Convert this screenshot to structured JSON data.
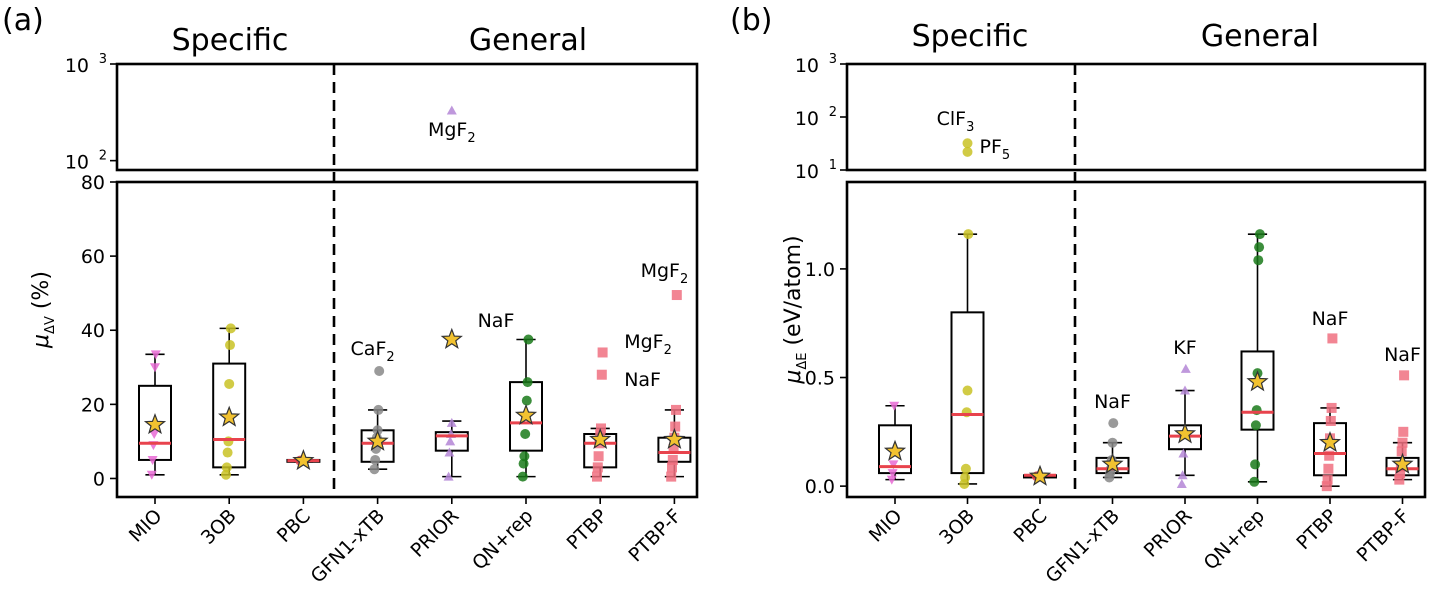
{
  "groups": {
    "specific": "Specific",
    "general": "General"
  },
  "color_map": {
    "MIO": "#e86ad4",
    "3OB": "#c9c224",
    "PBC": "#e8434d",
    "GFN1-xTB": "#888888",
    "PRIOR": "#b486d6",
    "QN+rep": "#1a7a1a",
    "PTBP": "#f07080",
    "PTBP-F": "#f07080",
    "median": "#e8434d",
    "mean_star": "#f2c230"
  },
  "chart_data": [
    {
      "panel": "(a)",
      "type": "box",
      "ylabel": "μΔV (%)",
      "ylabel_parts": {
        "mu": "μ",
        "sub": "ΔV",
        "unit": " (%)"
      },
      "categories": [
        "MIO",
        "3OB",
        "PBC",
        "GFN1-xTB",
        "PRIOR",
        "QN+rep",
        "PTBP",
        "PTBP-F"
      ],
      "ylim_lower": [
        -5,
        80
      ],
      "ylim_upper_log": [
        80,
        1000
      ],
      "lower_ticks": [
        "0",
        "20",
        "40",
        "60",
        "80"
      ],
      "upper_ticks": [
        {
          "base": "10",
          "exp": "2",
          "value": 100
        },
        {
          "base": "10",
          "exp": "3",
          "value": 1000
        }
      ],
      "boxes": [
        {
          "category": "MIO",
          "q1": 5,
          "median": 9.5,
          "q3": 25,
          "wlo": 1,
          "whi": 33.5,
          "mean": 14.5,
          "marker": "triangle-down",
          "points": [
            1,
            5,
            9,
            12,
            30,
            33.5
          ]
        },
        {
          "category": "3OB",
          "q1": 3,
          "median": 10.5,
          "q3": 31,
          "wlo": 1,
          "whi": 40.5,
          "mean": 16.5,
          "marker": "circle",
          "points": [
            1,
            3,
            7,
            10,
            25.5,
            36,
            40.5
          ]
        },
        {
          "category": "PBC",
          "q1": 4.5,
          "median": 4.8,
          "q3": 5,
          "wlo": 4.5,
          "whi": 5,
          "mean": 4.8,
          "marker": "circle",
          "points": [
            4.8
          ]
        },
        {
          "category": "GFN1-xTB",
          "q1": 4.5,
          "median": 9.5,
          "q3": 13,
          "wlo": 2.5,
          "whi": 18.5,
          "mean": 10,
          "marker": "circle",
          "points": [
            2.5,
            5,
            8,
            11,
            13,
            18.5,
            29
          ]
        },
        {
          "category": "PRIOR",
          "q1": 7.5,
          "median": 11.5,
          "q3": 12.5,
          "wlo": 0.5,
          "whi": 15.5,
          "mean": 37.5,
          "marker": "triangle-up",
          "points": [
            0.5,
            7,
            10,
            12,
            15
          ]
        },
        {
          "category": "QN+rep",
          "q1": 7.5,
          "median": 15,
          "q3": 26,
          "wlo": 0.5,
          "whi": 37.5,
          "mean": 17,
          "marker": "circle",
          "points": [
            0.5,
            4,
            6,
            12,
            17,
            21,
            26,
            37.5
          ]
        },
        {
          "category": "PTBP",
          "q1": 3,
          "median": 9.5,
          "q3": 12,
          "wlo": 0.5,
          "whi": 13.5,
          "mean": 10.5,
          "marker": "square",
          "points": [
            0.5,
            3,
            6,
            9.5,
            12,
            13.5,
            28,
            34
          ]
        },
        {
          "category": "PTBP-F",
          "q1": 4.5,
          "median": 7,
          "q3": 11,
          "wlo": 0.5,
          "whi": 18.5,
          "mean": 10.5,
          "marker": "square",
          "points": [
            0.5,
            3,
            5,
            8,
            11,
            14,
            18.5,
            49.5
          ]
        }
      ],
      "outliers_upper": [
        {
          "category": "PRIOR",
          "value": 330,
          "label": "MgF",
          "sub": "2"
        }
      ],
      "annotations": [
        {
          "category": "GFN1-xTB",
          "label": "CaF",
          "sub": "2"
        },
        {
          "category": "QN+rep",
          "label": "NaF",
          "sub": ""
        },
        {
          "category": "PTBP",
          "label": "MgF",
          "sub": "2"
        },
        {
          "category": "PTBP",
          "label": "NaF",
          "sub": ""
        },
        {
          "category": "PTBP-F",
          "label": "MgF",
          "sub": "2"
        }
      ]
    },
    {
      "panel": "(b)",
      "type": "box",
      "ylabel": "μΔE (eV/atom)",
      "ylabel_parts": {
        "mu": "μ",
        "sub": "ΔE",
        "unit": " (eV/atom)"
      },
      "categories": [
        "MIO",
        "3OB",
        "PBC",
        "GFN1-xTB",
        "PRIOR",
        "QN+rep",
        "PTBP",
        "PTBP-F"
      ],
      "ylim_lower": [
        -0.05,
        1.4
      ],
      "ylim_upper_log": [
        10,
        1000
      ],
      "lower_ticks": [
        "0.0",
        "0.5",
        "1.0"
      ],
      "upper_ticks": [
        {
          "base": "10",
          "exp": "1",
          "value": 10
        },
        {
          "base": "10",
          "exp": "2",
          "value": 100
        },
        {
          "base": "10",
          "exp": "3",
          "value": 1000
        }
      ],
      "boxes": [
        {
          "category": "MIO",
          "q1": 0.06,
          "median": 0.09,
          "q3": 0.28,
          "wlo": 0.03,
          "whi": 0.37,
          "mean": 0.16,
          "marker": "triangle-down",
          "points": [
            0.03,
            0.06,
            0.1,
            0.37
          ]
        },
        {
          "category": "3OB",
          "q1": 0.06,
          "median": 0.33,
          "q3": 0.8,
          "wlo": 0.01,
          "whi": 1.16,
          "mean": null,
          "marker": "circle",
          "points": [
            0.01,
            0.04,
            0.08,
            0.34,
            0.44,
            1.16
          ]
        },
        {
          "category": "PBC",
          "q1": 0.04,
          "median": 0.05,
          "q3": 0.05,
          "wlo": 0.04,
          "whi": 0.05,
          "mean": 0.045,
          "marker": "circle",
          "points": [
            0.045
          ]
        },
        {
          "category": "GFN1-xTB",
          "q1": 0.06,
          "median": 0.08,
          "q3": 0.13,
          "wlo": 0.04,
          "whi": 0.2,
          "mean": 0.1,
          "marker": "circle",
          "points": [
            0.04,
            0.06,
            0.08,
            0.12,
            0.2,
            0.29
          ]
        },
        {
          "category": "PRIOR",
          "q1": 0.17,
          "median": 0.23,
          "q3": 0.28,
          "wlo": 0.05,
          "whi": 0.44,
          "mean": 0.24,
          "marker": "triangle-up",
          "points": [
            0.01,
            0.05,
            0.15,
            0.25,
            0.44,
            0.54
          ]
        },
        {
          "category": "QN+rep",
          "q1": 0.26,
          "median": 0.34,
          "q3": 0.62,
          "wlo": 0.02,
          "whi": 1.16,
          "mean": 0.48,
          "marker": "circle",
          "points": [
            0.02,
            0.1,
            0.28,
            0.35,
            0.52,
            1.04,
            1.1,
            1.16
          ]
        },
        {
          "category": "PTBP",
          "q1": 0.05,
          "median": 0.15,
          "q3": 0.29,
          "wlo": 0.0,
          "whi": 0.36,
          "mean": 0.2,
          "marker": "square",
          "points": [
            0.0,
            0.03,
            0.08,
            0.14,
            0.22,
            0.3,
            0.36,
            0.68
          ]
        },
        {
          "category": "PTBP-F",
          "q1": 0.05,
          "median": 0.08,
          "q3": 0.13,
          "wlo": 0.03,
          "whi": 0.2,
          "mean": 0.1,
          "marker": "square",
          "points": [
            0.03,
            0.06,
            0.09,
            0.16,
            0.2,
            0.25,
            0.51
          ]
        }
      ],
      "outliers_upper": [
        {
          "category": "3OB",
          "value": 32,
          "label": "ClF",
          "sub": "3"
        },
        {
          "category": "3OB",
          "value": 22,
          "label": "PF",
          "sub": "5"
        }
      ],
      "annotations": [
        {
          "category": "GFN1-xTB",
          "label": "NaF",
          "sub": ""
        },
        {
          "category": "PRIOR",
          "label": "KF",
          "sub": ""
        },
        {
          "category": "PTBP",
          "label": "NaF",
          "sub": ""
        },
        {
          "category": "PTBP-F",
          "label": "NaF",
          "sub": ""
        }
      ]
    }
  ]
}
